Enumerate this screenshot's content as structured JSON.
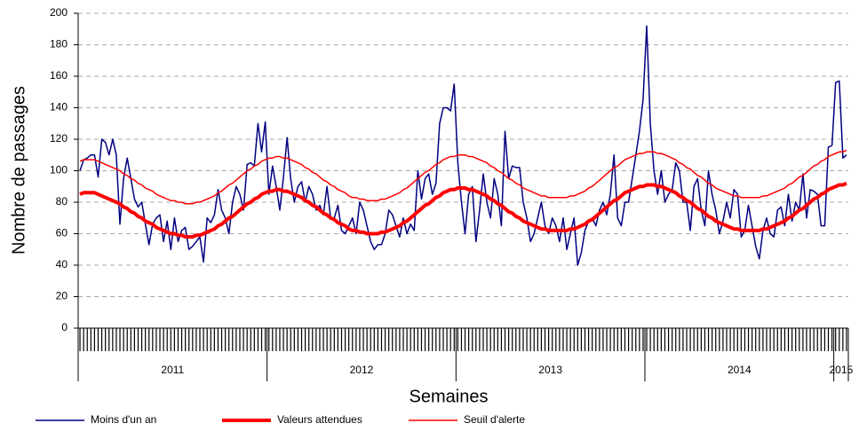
{
  "chart_data": {
    "type": "line",
    "x_label": "Semaines",
    "y_label": "Nombre de passages",
    "categories": [
      null,
      null,
      null,
      null,
      null,
      null,
      null,
      null,
      null,
      null,
      null,
      null,
      null,
      null,
      null,
      null,
      null,
      null,
      null,
      null,
      null,
      null,
      null,
      null,
      null,
      null,
      null,
      null,
      null,
      null,
      null,
      null,
      null,
      null,
      null,
      null,
      null,
      null,
      null,
      null,
      null,
      null,
      null,
      null,
      null,
      null,
      null,
      null,
      null,
      null,
      null,
      null,
      null,
      null,
      null,
      null,
      null,
      null,
      null,
      null,
      null,
      null,
      null,
      null,
      null,
      null,
      null,
      null,
      null,
      null,
      null,
      null,
      null,
      null,
      null,
      null,
      null,
      null,
      null,
      null,
      null,
      null,
      null,
      null,
      null,
      null,
      null,
      null,
      null,
      null,
      null,
      null,
      null,
      null,
      null,
      null,
      null,
      null,
      null,
      null,
      null,
      null,
      null,
      null,
      null,
      null,
      null,
      null,
      null,
      null,
      null,
      null,
      null,
      null,
      null,
      null,
      null,
      null,
      null,
      null,
      null,
      null,
      null,
      null,
      null,
      null,
      null,
      null,
      null,
      null,
      null,
      null,
      null,
      null,
      null,
      null,
      null,
      null,
      null,
      null,
      null,
      null,
      null,
      null,
      null,
      null,
      null,
      null,
      null,
      null,
      null,
      null,
      null,
      null,
      null,
      null,
      null,
      null,
      null,
      null,
      null,
      null,
      null,
      null,
      null,
      null,
      null,
      null,
      null,
      null,
      null,
      null,
      null,
      null,
      null,
      null,
      null,
      null,
      null,
      null,
      null,
      null,
      null,
      null,
      null,
      null,
      null,
      null,
      null,
      null,
      null,
      null,
      null,
      null,
      null,
      null,
      null,
      null,
      null,
      null,
      null,
      null,
      null,
      null,
      null,
      null,
      null,
      null,
      null,
      null,
      null,
      null
    ],
    "groups": [
      {
        "label": "2011",
        "count": 52
      },
      {
        "label": "2012",
        "count": 52
      },
      {
        "label": "2013",
        "count": 52
      },
      {
        "label": "2014",
        "count": 52
      },
      {
        "label": "2015",
        "count": 4
      }
    ],
    "ylim": [
      0,
      200
    ],
    "yticks": [
      0,
      20,
      40,
      60,
      80,
      100,
      120,
      140,
      160,
      180,
      200
    ],
    "grid": true,
    "legend": "bottom",
    "series": [
      {
        "name": "Moins d'un an",
        "color": "#000080",
        "width": 1.5,
        "values": [
          100,
          107,
          108,
          110,
          110,
          96,
          120,
          118,
          110,
          120,
          110,
          66,
          95,
          108,
          95,
          82,
          77,
          80,
          66,
          53,
          66,
          70,
          72,
          55,
          68,
          50,
          70,
          55,
          62,
          64,
          50,
          52,
          55,
          58,
          42,
          70,
          67,
          72,
          88,
          75,
          70,
          60,
          80,
          90,
          85,
          75,
          104,
          105,
          103,
          130,
          112,
          131,
          85,
          103,
          90,
          75,
          96,
          121,
          95,
          80,
          90,
          93,
          80,
          90,
          85,
          75,
          78,
          72,
          90,
          70,
          70,
          78,
          62,
          60,
          65,
          70,
          60,
          80,
          75,
          65,
          55,
          50,
          53,
          53,
          60,
          75,
          72,
          65,
          58,
          70,
          60,
          66,
          62,
          100,
          82,
          95,
          98,
          85,
          92,
          130,
          140,
          140,
          138,
          155,
          105,
          80,
          60,
          85,
          90,
          55,
          75,
          98,
          80,
          70,
          95,
          85,
          65,
          125,
          95,
          103,
          102,
          102,
          80,
          70,
          55,
          60,
          70,
          80,
          65,
          60,
          70,
          65,
          55,
          70,
          50,
          60,
          70,
          40,
          48,
          62,
          68,
          70,
          65,
          75,
          80,
          72,
          85,
          110,
          70,
          65,
          80,
          80,
          95,
          110,
          125,
          145,
          192,
          130,
          100,
          85,
          100,
          80,
          85,
          88,
          105,
          100,
          80,
          80,
          62,
          90,
          95,
          75,
          65,
          100,
          85,
          75,
          60,
          68,
          80,
          70,
          88,
          85,
          58,
          62,
          78,
          65,
          52,
          44,
          62,
          70,
          60,
          58,
          75,
          77,
          65,
          85,
          68,
          80,
          75,
          98,
          70,
          88,
          87,
          85,
          65,
          65,
          115,
          116,
          156,
          157,
          108,
          110
        ]
      },
      {
        "name": "Valeurs attendues",
        "color": "#ff0000",
        "width": 4,
        "values": [
          85,
          86,
          86,
          86,
          86,
          85,
          84,
          83,
          82,
          81,
          80,
          79,
          77,
          76,
          74,
          73,
          71,
          70,
          68,
          67,
          66,
          64,
          63,
          62,
          61,
          60,
          60,
          59,
          59,
          58,
          58,
          58,
          59,
          59,
          60,
          61,
          62,
          63,
          65,
          66,
          68,
          70,
          71,
          73,
          75,
          77,
          79,
          80,
          82,
          83,
          85,
          86,
          87,
          87,
          88,
          88,
          87,
          87,
          86,
          85,
          84,
          83,
          81,
          80,
          78,
          77,
          75,
          73,
          72,
          70,
          69,
          67,
          66,
          65,
          63,
          62,
          62,
          61,
          61,
          60,
          60,
          60,
          60,
          61,
          61,
          62,
          63,
          64,
          65,
          67,
          68,
          70,
          72,
          74,
          76,
          78,
          79,
          81,
          83,
          84,
          86,
          87,
          88,
          88,
          89,
          89,
          89,
          88,
          88,
          87,
          86,
          85,
          84,
          82,
          81,
          79,
          78,
          76,
          74,
          73,
          71,
          70,
          68,
          67,
          66,
          65,
          64,
          63,
          63,
          62,
          62,
          62,
          62,
          62,
          62,
          63,
          63,
          64,
          65,
          66,
          68,
          69,
          71,
          73,
          75,
          77,
          79,
          81,
          82,
          84,
          86,
          87,
          88,
          89,
          90,
          90,
          91,
          91,
          91,
          90,
          90,
          89,
          88,
          87,
          86,
          84,
          83,
          81,
          80,
          78,
          76,
          75,
          73,
          71,
          70,
          68,
          67,
          66,
          65,
          64,
          63,
          63,
          62,
          62,
          62,
          62,
          62,
          62,
          63,
          63,
          64,
          65,
          66,
          67,
          68,
          70,
          71,
          73,
          75,
          76,
          78,
          80,
          82,
          83,
          85,
          86,
          88,
          89,
          90,
          91,
          91,
          92
        ]
      },
      {
        "name": "Seuil d'alerte",
        "color": "#ff0000",
        "width": 1.5,
        "values": [
          106,
          107,
          107,
          107,
          107,
          106,
          105,
          104,
          103,
          102,
          101,
          100,
          98,
          97,
          95,
          94,
          92,
          91,
          89,
          88,
          87,
          85,
          84,
          83,
          82,
          81,
          81,
          80,
          80,
          79,
          79,
          79,
          80,
          80,
          81,
          82,
          83,
          84,
          86,
          87,
          89,
          91,
          92,
          94,
          96,
          98,
          100,
          101,
          103,
          104,
          106,
          107,
          108,
          108,
          109,
          109,
          108,
          108,
          107,
          106,
          105,
          104,
          102,
          101,
          99,
          98,
          96,
          94,
          93,
          91,
          90,
          88,
          87,
          86,
          84,
          83,
          83,
          82,
          82,
          81,
          81,
          81,
          81,
          82,
          82,
          83,
          84,
          85,
          86,
          88,
          89,
          91,
          93,
          95,
          97,
          99,
          100,
          102,
          104,
          105,
          107,
          108,
          109,
          109,
          110,
          110,
          110,
          109,
          109,
          108,
          107,
          106,
          105,
          103,
          102,
          100,
          99,
          97,
          95,
          94,
          92,
          91,
          89,
          88,
          87,
          86,
          85,
          84,
          84,
          83,
          83,
          83,
          83,
          83,
          83,
          84,
          84,
          85,
          86,
          87,
          89,
          90,
          92,
          94,
          96,
          98,
          100,
          102,
          103,
          105,
          107,
          108,
          109,
          110,
          111,
          111,
          112,
          112,
          112,
          111,
          111,
          110,
          109,
          108,
          107,
          105,
          104,
          102,
          101,
          99,
          97,
          96,
          94,
          92,
          91,
          89,
          88,
          87,
          86,
          85,
          84,
          84,
          83,
          83,
          83,
          83,
          83,
          83,
          84,
          84,
          85,
          86,
          87,
          88,
          89,
          91,
          92,
          94,
          96,
          97,
          99,
          101,
          103,
          104,
          106,
          107,
          109,
          110,
          111,
          112,
          112,
          113
        ]
      }
    ]
  }
}
